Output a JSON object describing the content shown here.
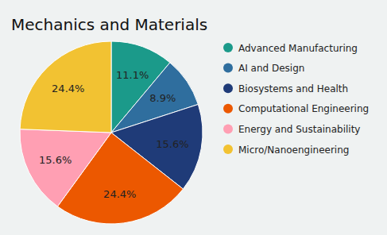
{
  "chart_data": {
    "type": "pie",
    "title": "Mechanics and Materials",
    "categories": [
      "Advanced Manufacturing",
      "AI and Design",
      "Biosystems and Health",
      "Computational Engineering",
      "Energy and Sustainability",
      "Micro/Nanoengineering"
    ],
    "values": [
      11.1,
      8.9,
      15.6,
      24.4,
      15.6,
      24.4
    ],
    "value_labels": [
      "11.1%",
      "8.9%",
      "15.6%",
      "24.4%",
      "15.6%",
      "24.4%"
    ],
    "colors": [
      "#1b9a8a",
      "#2f6e9e",
      "#1f3b78",
      "#ec5800",
      "#ff9fb3",
      "#f2c232"
    ],
    "data_labels": true,
    "legend": "right"
  }
}
